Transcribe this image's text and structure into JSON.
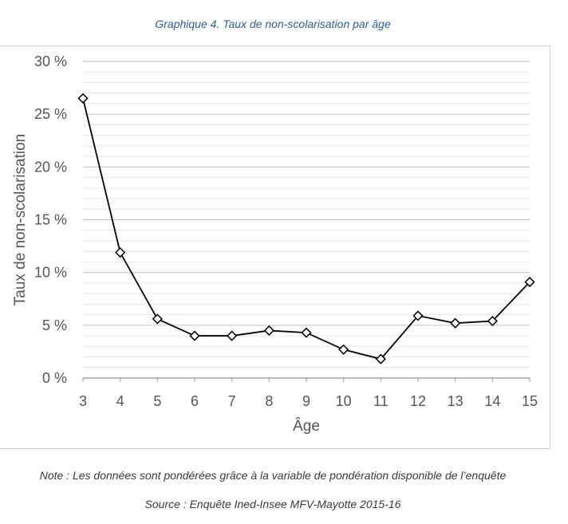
{
  "title": "Graphique 4. Taux de non-scolarisation par âge",
  "note": "Note : Les données sont pondérées grâce à la variable de pondération disponible de l’enquête",
  "source": "Source : Enquête Ined-Insee MFV-Mayotte 2015-16",
  "colors": {
    "line": "#000000",
    "grid_major": "#c8c8c8",
    "grid_minor": "#e6e6e6",
    "title": "#2f5f8a",
    "axis_text": "#555555"
  },
  "chart_data": {
    "type": "line",
    "xlabel": "Âge",
    "ylabel": "Taux de non-scolarisation",
    "x": [
      3,
      4,
      5,
      6,
      7,
      8,
      9,
      10,
      11,
      12,
      13,
      14,
      15
    ],
    "x_tick_labels": [
      "3",
      "4",
      "5",
      "6",
      "7",
      "8",
      "9",
      "10",
      "11",
      "12",
      "13",
      "14",
      "15"
    ],
    "values": [
      26.5,
      11.9,
      5.6,
      4.0,
      4.0,
      4.5,
      4.3,
      2.7,
      1.8,
      5.9,
      5.2,
      5.4,
      9.1
    ],
    "ylim": [
      0,
      30
    ],
    "y_ticks": [
      0,
      5,
      10,
      15,
      20,
      25,
      30
    ],
    "y_tick_labels": [
      "0 %",
      "5 %",
      "10 %",
      "15 %",
      "20 %",
      "25 %",
      "30 %"
    ],
    "grid": true,
    "marker": "diamond"
  }
}
